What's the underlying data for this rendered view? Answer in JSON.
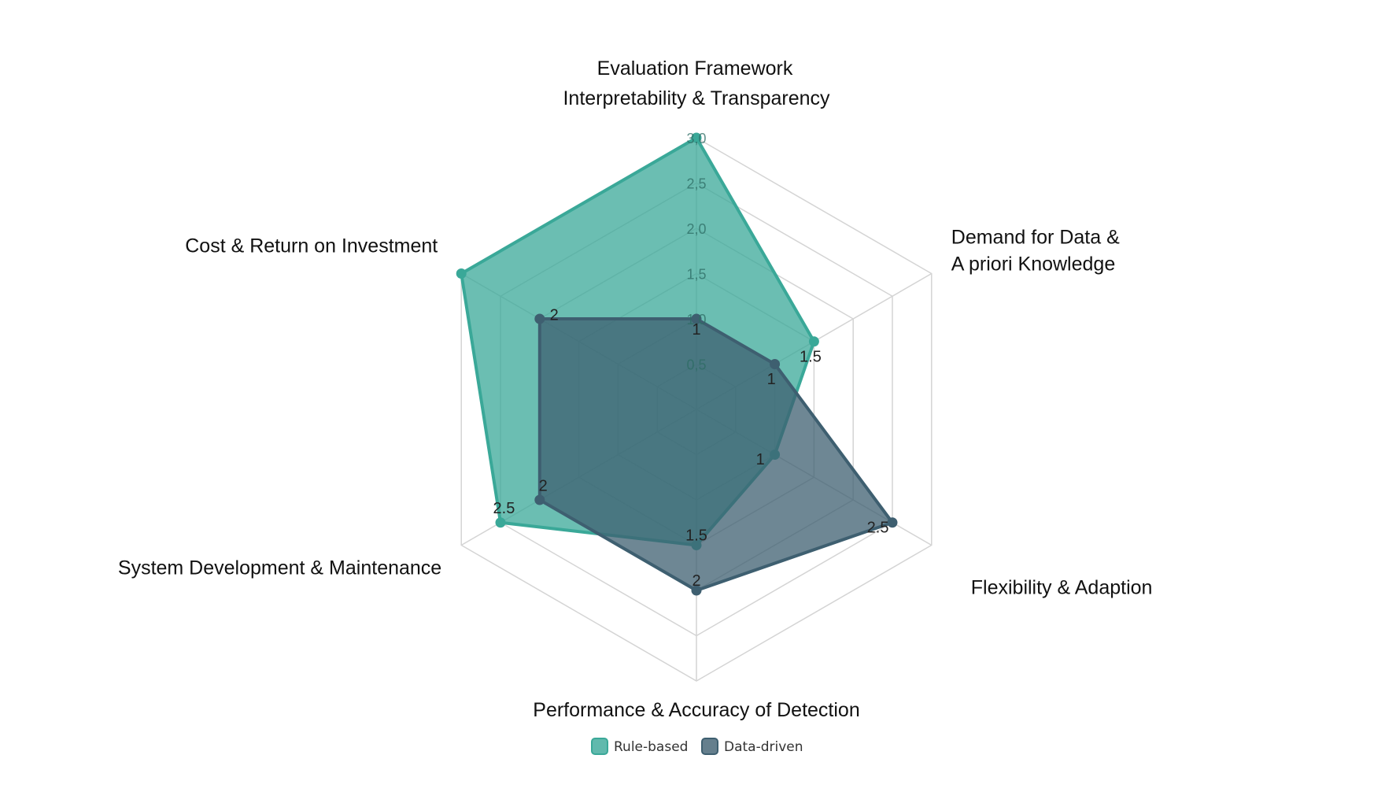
{
  "chart_data": {
    "type": "radar",
    "title": "Evaluation Framework",
    "categories": [
      [
        "Interpretability & Transparency"
      ],
      [
        "Demand for Data &",
        "A priori Knowledge"
      ],
      [
        "Flexibility & Adaption"
      ],
      [
        "Performance & Accuracy of Detection"
      ],
      [
        "System Development & Maintenance"
      ],
      [
        "Cost & Return on Investment"
      ]
    ],
    "rlim": [
      0,
      3.0
    ],
    "ticks": [
      "0,5",
      "1,0",
      "1,5",
      "2,0",
      "2,5",
      "3,0"
    ],
    "grid": true,
    "legend_position": "bottom",
    "series": [
      {
        "name": "Rule-based",
        "values": [
          3.0,
          1.5,
          1.0,
          1.5,
          2.5,
          3.0
        ],
        "color": "#3aa898"
      },
      {
        "name": "Data-driven",
        "values": [
          1.0,
          1.0,
          2.5,
          2.0,
          2.0,
          2.0
        ],
        "color": "#3e5f70"
      }
    ],
    "data_labels": [
      {
        "text": "1",
        "axis": 0,
        "value": 1.0
      },
      {
        "text": "1.5",
        "axis": 1,
        "value": 1.5
      },
      {
        "text": "1",
        "axis": 1,
        "value": 1.0
      },
      {
        "text": "1",
        "axis": 2,
        "value": 1.0
      },
      {
        "text": "2.5",
        "axis": 2,
        "value": 2.5
      },
      {
        "text": "1.5",
        "axis": 3,
        "value": 1.5
      },
      {
        "text": "2",
        "axis": 3,
        "value": 2.0
      },
      {
        "text": "2",
        "axis": 4,
        "value": 2.0
      },
      {
        "text": "2.5",
        "axis": 4,
        "value": 2.5
      },
      {
        "text": "2",
        "axis": 5,
        "value": 2.0
      }
    ]
  }
}
